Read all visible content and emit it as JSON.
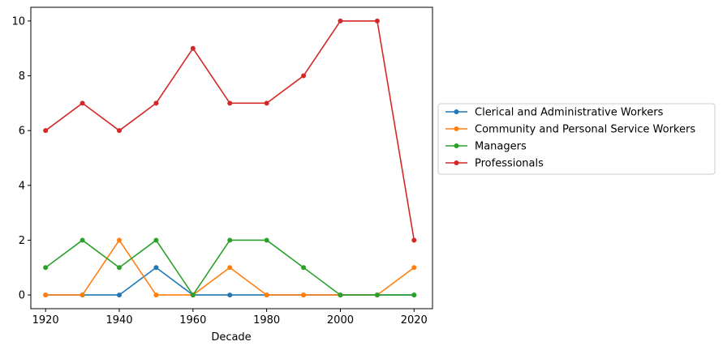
{
  "chart_data": {
    "type": "line",
    "title": "",
    "xlabel": "Decade",
    "ylabel": "",
    "x": [
      1920,
      1930,
      1940,
      1950,
      1960,
      1970,
      1980,
      1990,
      2000,
      2010,
      2020
    ],
    "xlim": [
      1916,
      2025
    ],
    "ylim": [
      -0.5,
      10.5
    ],
    "xticks": [
      "1920",
      "1940",
      "1960",
      "1980",
      "2000",
      "2020"
    ],
    "yticks": [
      "0",
      "2",
      "4",
      "6",
      "8",
      "10"
    ],
    "grid": false,
    "legend_position": "center-right outside",
    "series": [
      {
        "name": "Clerical and Administrative Workers",
        "color": "#1f77b4",
        "values": [
          0,
          0,
          0,
          1,
          0,
          0,
          0,
          0,
          0,
          0,
          0
        ]
      },
      {
        "name": "Community and Personal Service Workers",
        "color": "#ff7f0e",
        "values": [
          0,
          0,
          2,
          0,
          0,
          1,
          0,
          0,
          0,
          0,
          1
        ]
      },
      {
        "name": "Managers",
        "color": "#2ca02c",
        "values": [
          1,
          2,
          1,
          2,
          0,
          2,
          2,
          1,
          0,
          0,
          0
        ]
      },
      {
        "name": "Professionals",
        "color": "#d62728",
        "values": [
          6,
          7,
          6,
          7,
          9,
          7,
          7,
          8,
          10,
          10,
          2
        ]
      }
    ]
  }
}
